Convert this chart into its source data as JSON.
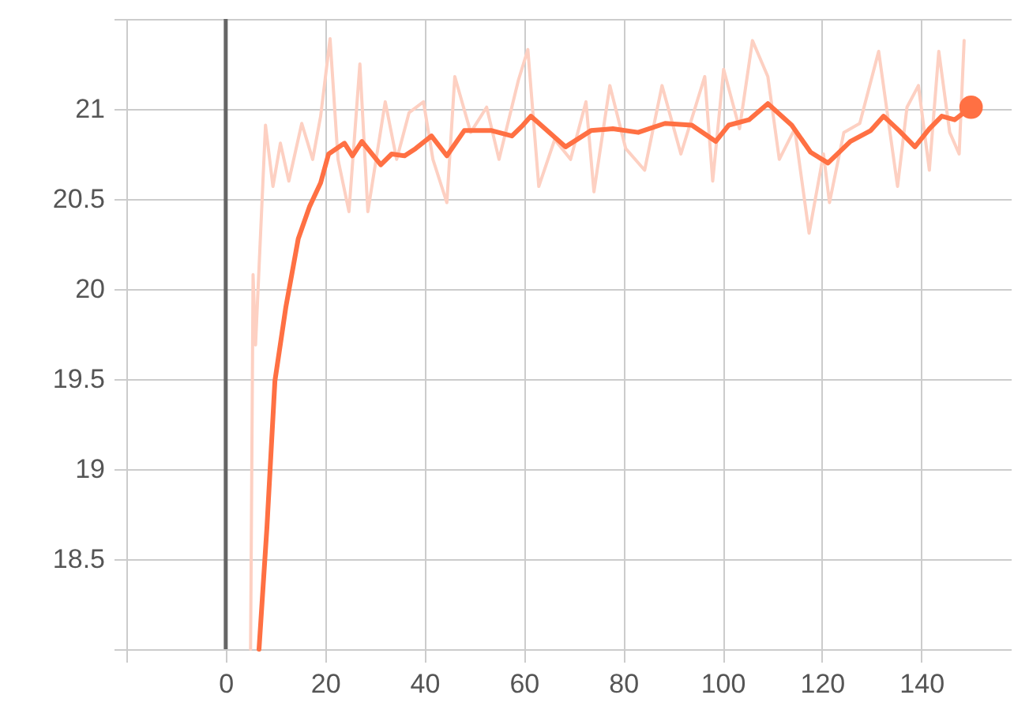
{
  "chart_data": {
    "type": "line",
    "series": [
      {
        "color": "#fdd0c2",
        "x": [
          5,
          5.5,
          6,
          8,
          9.5,
          11,
          12.7,
          15.3,
          17.5,
          19.1,
          21,
          22.6,
          24.8,
          27,
          28.6,
          32.1,
          34.4,
          36.9,
          39.8,
          41.7,
          44.5,
          46.1,
          49.3,
          52.5,
          55,
          58.9,
          60.8,
          63,
          66.2,
          69.4,
          72.5,
          74.1,
          77.3,
          80.5,
          84.3,
          87.8,
          91.6,
          96.4,
          98,
          100.2,
          103.4,
          106,
          109.1,
          111.4,
          114.5,
          117.4,
          120.3,
          121.5,
          124.4,
          127.6,
          131.4,
          135.2,
          137.1,
          139.4,
          141.6,
          143.5,
          145.7,
          147.6,
          148.6
        ],
        "values": [
          18.0,
          20.08,
          19.69,
          20.91,
          20.57,
          20.81,
          20.6,
          20.92,
          20.72,
          20.96,
          21.39,
          20.72,
          20.43,
          21.25,
          20.43,
          21.04,
          20.72,
          20.98,
          21.04,
          20.72,
          20.48,
          21.18,
          20.87,
          21.01,
          20.72,
          21.16,
          21.33,
          20.57,
          20.83,
          20.72,
          21.04,
          20.54,
          21.13,
          20.78,
          20.66,
          21.13,
          20.75,
          21.18,
          20.6,
          21.22,
          20.89,
          21.38,
          21.18,
          20.72,
          20.89,
          20.31,
          20.75,
          20.48,
          20.87,
          20.92,
          21.32,
          20.57,
          21.01,
          21.13,
          20.66,
          21.32,
          20.87,
          20.75,
          21.38
        ]
      },
      {
        "color": "#ff7043",
        "x": [
          6.7,
          8.3,
          9.9,
          12.1,
          14.6,
          16.9,
          19.1,
          20.7,
          23.9,
          25.5,
          27.4,
          31.2,
          33.4,
          36,
          38.2,
          41.4,
          44.5,
          48,
          53.5,
          57.6,
          59.8,
          61.4,
          68.4,
          73.5,
          77.9,
          83,
          88.4,
          93.8,
          98.6,
          101.2,
          105.3,
          109.1,
          113.9,
          117.7,
          121.2,
          125.7,
          129.8,
          132.4,
          135.5,
          138.7,
          141.6,
          144.1,
          146.7,
          150
        ],
        "values": [
          18.0,
          18.68,
          19.49,
          19.9,
          20.28,
          20.46,
          20.59,
          20.75,
          20.81,
          20.74,
          20.82,
          20.69,
          20.75,
          20.74,
          20.78,
          20.85,
          20.74,
          20.88,
          20.88,
          20.85,
          20.91,
          20.96,
          20.79,
          20.88,
          20.89,
          20.87,
          20.92,
          20.91,
          20.82,
          20.91,
          20.94,
          21.03,
          20.91,
          20.76,
          20.7,
          20.82,
          20.88,
          20.96,
          20.88,
          20.79,
          20.89,
          20.96,
          20.94,
          21.01
        ]
      },
      {
        "type": "scatter",
        "color": "#ff7043",
        "marker": "circle",
        "x": [
          150
        ],
        "values": [
          21.01
        ]
      }
    ],
    "marker": "none",
    "line_style": "solid",
    "xlim": [
      -20,
      158
    ],
    "xticks": [
      {
        "value": -20,
        "label": null
      },
      0,
      20,
      40,
      60,
      80,
      100,
      120,
      140
    ],
    "ylim": [
      18,
      21.5
    ],
    "yticks": [
      {
        "value": 18,
        "label": null
      },
      18.5,
      19,
      19.5,
      20,
      20.5,
      21,
      {
        "value": 21.5,
        "label": null
      }
    ],
    "ref_lines": [
      {
        "axis": "x",
        "value": 0,
        "color": "#666666"
      }
    ],
    "grid": true
  }
}
